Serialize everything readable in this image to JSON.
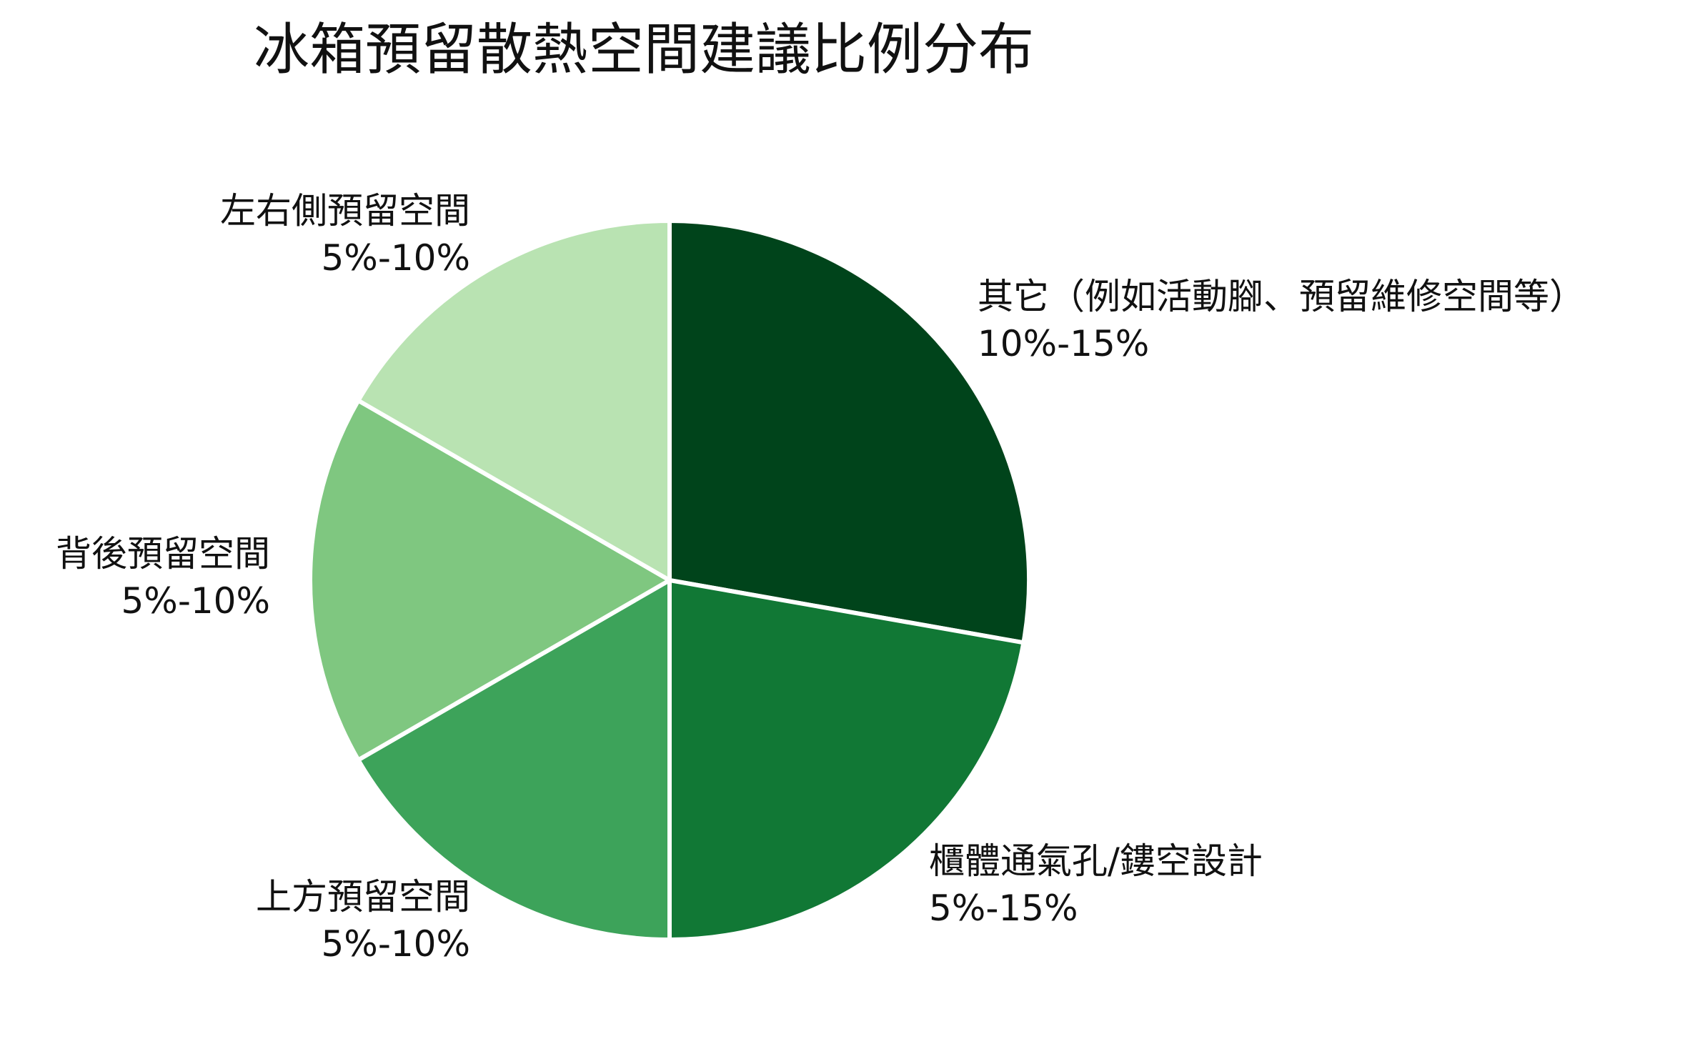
{
  "chart_data": {
    "type": "pie",
    "title": "冰箱預留散熱空間建議比例分布",
    "slices": [
      {
        "label": "其它（例如活動腳、預留維修空間等）",
        "range": "10%-15%",
        "value": 12.5,
        "color": "#00441b"
      },
      {
        "label": "櫃體通氣孔/鏤空設計",
        "range": "5%-15%",
        "value": 10.0,
        "color": "#117835"
      },
      {
        "label": "上方預留空間",
        "range": "5%-10%",
        "value": 7.5,
        "color": "#3da35a"
      },
      {
        "label": "背後預留空間",
        "range": "5%-10%",
        "value": 7.5,
        "color": "#7fc780"
      },
      {
        "label": "左右側預留空間",
        "range": "5%-10%",
        "value": 7.5,
        "color": "#b9e3b2"
      }
    ],
    "start_angle": "top",
    "direction": "clockwise",
    "legend": "none"
  }
}
